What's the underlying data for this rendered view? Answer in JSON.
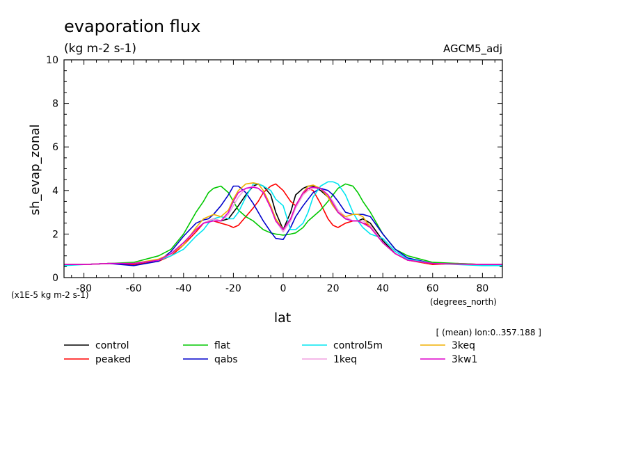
{
  "chart_data": {
    "type": "line",
    "title": "evaporation flux",
    "subtitle": "(kg m-2 s-1)",
    "model_label": "AGCM5_adj",
    "xlabel": "lat",
    "x_units": "(degrees_north)",
    "ylabel": "sh_evap_zonal",
    "y_scale_note": "(x1E-5 kg m-2 s-1)",
    "averaging_note": "[ (mean) lon:0..357.188 ]",
    "xlim": [
      -88,
      88
    ],
    "ylim": [
      0,
      10
    ],
    "x_ticks": [
      -80,
      -60,
      -40,
      -20,
      0,
      20,
      40,
      60,
      80
    ],
    "y_ticks": [
      0,
      2,
      4,
      6,
      8,
      10
    ],
    "x": [
      -88,
      -80,
      -70,
      -60,
      -50,
      -45,
      -40,
      -35,
      -32,
      -30,
      -28,
      -25,
      -22,
      -20,
      -18,
      -15,
      -12,
      -10,
      -8,
      -5,
      -3,
      0,
      3,
      5,
      8,
      10,
      12,
      15,
      18,
      20,
      22,
      25,
      28,
      30,
      32,
      35,
      40,
      45,
      50,
      60,
      70,
      80,
      88
    ],
    "series": [
      {
        "name": "control",
        "color": "#000000",
        "values": [
          0.6,
          0.6,
          0.65,
          0.65,
          0.8,
          1.1,
          1.6,
          2.2,
          2.5,
          2.6,
          2.7,
          2.6,
          2.7,
          3.0,
          3.3,
          3.8,
          4.2,
          4.3,
          4.2,
          3.8,
          3.0,
          2.2,
          3.0,
          3.8,
          4.1,
          4.2,
          4.2,
          4.0,
          3.7,
          3.3,
          3.0,
          2.7,
          2.6,
          2.6,
          2.7,
          2.5,
          1.7,
          1.1,
          0.8,
          0.65,
          0.62,
          0.6,
          0.6
        ]
      },
      {
        "name": "peaked",
        "color": "#ff0000",
        "values": [
          0.6,
          0.6,
          0.65,
          0.6,
          0.75,
          1.0,
          1.5,
          2.1,
          2.5,
          2.6,
          2.6,
          2.5,
          2.4,
          2.3,
          2.4,
          2.8,
          3.2,
          3.5,
          3.9,
          4.2,
          4.3,
          4.0,
          3.5,
          3.3,
          3.8,
          4.1,
          4.0,
          3.4,
          2.7,
          2.4,
          2.3,
          2.5,
          2.6,
          2.6,
          2.5,
          2.4,
          1.6,
          1.1,
          0.8,
          0.6,
          0.65,
          0.6,
          0.6
        ]
      },
      {
        "name": "flat",
        "color": "#00c800",
        "values": [
          0.6,
          0.6,
          0.65,
          0.7,
          1.0,
          1.3,
          2.0,
          3.0,
          3.5,
          3.9,
          4.1,
          4.2,
          3.9,
          3.5,
          3.1,
          2.8,
          2.6,
          2.4,
          2.2,
          2.05,
          2.0,
          1.95,
          2.0,
          2.05,
          2.3,
          2.6,
          2.8,
          3.1,
          3.5,
          3.8,
          4.1,
          4.3,
          4.2,
          3.9,
          3.5,
          3.0,
          2.0,
          1.3,
          1.0,
          0.7,
          0.65,
          0.6,
          0.6
        ]
      },
      {
        "name": "qabs",
        "color": "#0000cc",
        "values": [
          0.6,
          0.6,
          0.65,
          0.55,
          0.75,
          1.2,
          1.9,
          2.5,
          2.65,
          2.7,
          2.9,
          3.3,
          3.8,
          4.2,
          4.2,
          3.9,
          3.4,
          3.0,
          2.6,
          2.1,
          1.8,
          1.75,
          2.3,
          2.8,
          3.3,
          3.6,
          3.9,
          4.1,
          4.0,
          3.8,
          3.5,
          3.0,
          2.9,
          2.9,
          2.9,
          2.8,
          2.0,
          1.3,
          0.9,
          0.65,
          0.62,
          0.6,
          0.6
        ]
      },
      {
        "name": "control5m",
        "color": "#00e5f0",
        "values": [
          0.55,
          0.6,
          0.65,
          0.65,
          0.8,
          1.0,
          1.3,
          1.9,
          2.2,
          2.5,
          2.7,
          2.8,
          2.7,
          2.7,
          3.0,
          3.7,
          4.3,
          4.3,
          4.2,
          4.0,
          3.6,
          3.3,
          2.2,
          2.2,
          2.5,
          3.0,
          3.7,
          4.2,
          4.4,
          4.4,
          4.3,
          3.8,
          3.0,
          2.6,
          2.3,
          2.0,
          1.8,
          1.2,
          0.85,
          0.65,
          0.6,
          0.55,
          0.55
        ]
      },
      {
        "name": "1keq",
        "color": "#f0a0e0",
        "values": [
          0.6,
          0.6,
          0.65,
          0.65,
          0.8,
          1.1,
          1.6,
          2.2,
          2.5,
          2.6,
          2.7,
          2.6,
          2.9,
          3.3,
          3.7,
          4.1,
          4.2,
          4.1,
          3.9,
          3.2,
          2.6,
          2.1,
          2.6,
          3.2,
          3.8,
          4.0,
          4.1,
          4.1,
          3.8,
          3.5,
          3.1,
          2.8,
          2.6,
          2.6,
          2.6,
          2.4,
          1.6,
          1.1,
          0.8,
          0.65,
          0.62,
          0.6,
          0.6
        ]
      },
      {
        "name": "3keq",
        "color": "#f0b000",
        "values": [
          0.6,
          0.6,
          0.65,
          0.65,
          0.85,
          1.1,
          1.5,
          2.3,
          2.7,
          2.8,
          2.9,
          2.8,
          3.1,
          3.6,
          4.0,
          4.3,
          4.35,
          4.3,
          4.0,
          3.3,
          2.7,
          2.2,
          2.7,
          3.3,
          3.9,
          4.2,
          4.25,
          4.1,
          3.7,
          3.3,
          3.0,
          2.8,
          2.9,
          2.9,
          2.8,
          2.3,
          1.6,
          1.1,
          0.8,
          0.65,
          0.62,
          0.6,
          0.6
        ]
      },
      {
        "name": "3kw1",
        "color": "#dd00cc",
        "values": [
          0.6,
          0.6,
          0.65,
          0.65,
          0.8,
          1.1,
          1.6,
          2.2,
          2.5,
          2.55,
          2.6,
          2.6,
          3.0,
          3.5,
          3.9,
          4.1,
          4.15,
          4.1,
          3.9,
          3.2,
          2.6,
          2.2,
          2.7,
          3.3,
          3.9,
          4.1,
          4.15,
          4.1,
          3.8,
          3.4,
          3.0,
          2.7,
          2.6,
          2.6,
          2.5,
          2.3,
          1.6,
          1.1,
          0.8,
          0.65,
          0.62,
          0.6,
          0.6
        ]
      }
    ],
    "legend_placement": "bottom",
    "grid": false
  }
}
